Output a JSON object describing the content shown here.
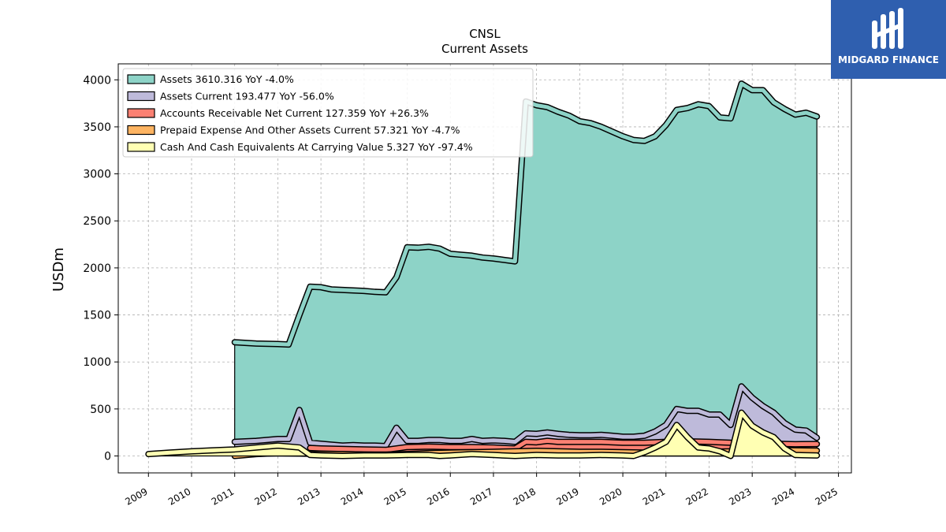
{
  "brand": {
    "name": "MIDGARD FINANCE"
  },
  "chart_data": {
    "type": "line",
    "title": "CNSL",
    "subtitle": "Current  Assets",
    "ylabel": "USDm",
    "xlabel": "",
    "xlim": [
      2008.3,
      2025.3
    ],
    "ylim": [
      -180,
      4170
    ],
    "x_ticks": [
      "2009",
      "2010",
      "2011",
      "2012",
      "2013",
      "2014",
      "2015",
      "2016",
      "2017",
      "2018",
      "2019",
      "2020",
      "2021",
      "2022",
      "2023",
      "2024",
      "2025"
    ],
    "y_ticks": [
      "0",
      "500",
      "1000",
      "1500",
      "2000",
      "2500",
      "3000",
      "3500",
      "4000"
    ],
    "grid": true,
    "legend_position": "upper-left",
    "series": [
      {
        "name": "Assets",
        "legend": "Assets  3610.316 YoY -4.0%",
        "color": "#8dd3c7",
        "points": [
          [
            2011.0,
            1210
          ],
          [
            2011.5,
            1195
          ],
          [
            2012.0,
            1190
          ],
          [
            2012.25,
            1185
          ],
          [
            2012.5,
            1500
          ],
          [
            2012.75,
            1800
          ],
          [
            2013.0,
            1795
          ],
          [
            2013.25,
            1770
          ],
          [
            2013.5,
            1765
          ],
          [
            2013.75,
            1760
          ],
          [
            2014.0,
            1755
          ],
          [
            2014.25,
            1745
          ],
          [
            2014.5,
            1740
          ],
          [
            2014.75,
            1900
          ],
          [
            2015.0,
            2220
          ],
          [
            2015.25,
            2215
          ],
          [
            2015.5,
            2225
          ],
          [
            2015.75,
            2205
          ],
          [
            2016.0,
            2150
          ],
          [
            2016.25,
            2140
          ],
          [
            2016.5,
            2130
          ],
          [
            2016.75,
            2110
          ],
          [
            2017.0,
            2100
          ],
          [
            2017.25,
            2085
          ],
          [
            2017.5,
            2070
          ],
          [
            2017.75,
            3770
          ],
          [
            2018.0,
            3730
          ],
          [
            2018.25,
            3710
          ],
          [
            2018.5,
            3660
          ],
          [
            2018.75,
            3620
          ],
          [
            2019.0,
            3560
          ],
          [
            2019.25,
            3540
          ],
          [
            2019.5,
            3500
          ],
          [
            2019.75,
            3450
          ],
          [
            2020.0,
            3400
          ],
          [
            2020.25,
            3360
          ],
          [
            2020.5,
            3350
          ],
          [
            2020.75,
            3400
          ],
          [
            2021.0,
            3520
          ],
          [
            2021.25,
            3680
          ],
          [
            2021.5,
            3700
          ],
          [
            2021.75,
            3740
          ],
          [
            2022.0,
            3720
          ],
          [
            2022.25,
            3600
          ],
          [
            2022.5,
            3590
          ],
          [
            2022.75,
            3960
          ],
          [
            2023.0,
            3890
          ],
          [
            2023.25,
            3890
          ],
          [
            2023.5,
            3760
          ],
          [
            2023.75,
            3690
          ],
          [
            2024.0,
            3630
          ],
          [
            2024.25,
            3650
          ],
          [
            2024.5,
            3610
          ]
        ]
      },
      {
        "name": "Assets Current",
        "legend": "Assets Current  193.477 YoY -56.0%",
        "color": "#bebada",
        "points": [
          [
            2011.0,
            150
          ],
          [
            2011.5,
            160
          ],
          [
            2012.0,
            180
          ],
          [
            2012.25,
            180
          ],
          [
            2012.5,
            490
          ],
          [
            2012.75,
            140
          ],
          [
            2013.0,
            130
          ],
          [
            2013.25,
            120
          ],
          [
            2013.5,
            110
          ],
          [
            2013.75,
            115
          ],
          [
            2014.0,
            110
          ],
          [
            2014.25,
            110
          ],
          [
            2014.5,
            105
          ],
          [
            2014.75,
            300
          ],
          [
            2015.0,
            160
          ],
          [
            2015.25,
            160
          ],
          [
            2015.5,
            170
          ],
          [
            2015.75,
            170
          ],
          [
            2016.0,
            160
          ],
          [
            2016.25,
            160
          ],
          [
            2016.5,
            180
          ],
          [
            2016.75,
            160
          ],
          [
            2017.0,
            165
          ],
          [
            2017.25,
            160
          ],
          [
            2017.5,
            150
          ],
          [
            2017.75,
            240
          ],
          [
            2018.0,
            235
          ],
          [
            2018.25,
            250
          ],
          [
            2018.5,
            235
          ],
          [
            2018.75,
            225
          ],
          [
            2019.0,
            220
          ],
          [
            2019.25,
            220
          ],
          [
            2019.5,
            225
          ],
          [
            2019.75,
            215
          ],
          [
            2020.0,
            205
          ],
          [
            2020.25,
            205
          ],
          [
            2020.5,
            215
          ],
          [
            2020.75,
            260
          ],
          [
            2021.0,
            330
          ],
          [
            2021.25,
            500
          ],
          [
            2021.5,
            480
          ],
          [
            2021.75,
            480
          ],
          [
            2022.0,
            440
          ],
          [
            2022.25,
            440
          ],
          [
            2022.5,
            330
          ],
          [
            2022.75,
            740
          ],
          [
            2023.0,
            620
          ],
          [
            2023.25,
            530
          ],
          [
            2023.5,
            460
          ],
          [
            2023.75,
            350
          ],
          [
            2024.0,
            280
          ],
          [
            2024.25,
            270
          ],
          [
            2024.5,
            193
          ]
        ]
      },
      {
        "name": "Accounts Receivable Net Current",
        "legend": "Accounts Receivable Net Current  127.359 YoY +26.3%",
        "color": "#fb8072",
        "points": [
          [
            2012.75,
            85
          ],
          [
            2013.0,
            80
          ],
          [
            2013.5,
            75
          ],
          [
            2014.0,
            70
          ],
          [
            2014.5,
            65
          ],
          [
            2015.0,
            95
          ],
          [
            2015.5,
            100
          ],
          [
            2016.0,
            95
          ],
          [
            2016.5,
            95
          ],
          [
            2017.0,
            90
          ],
          [
            2017.5,
            80
          ],
          [
            2017.75,
            150
          ],
          [
            2018.0,
            145
          ],
          [
            2018.25,
            160
          ],
          [
            2018.5,
            150
          ],
          [
            2019.0,
            150
          ],
          [
            2019.5,
            150
          ],
          [
            2020.0,
            140
          ],
          [
            2020.5,
            140
          ],
          [
            2021.0,
            150
          ],
          [
            2021.5,
            155
          ],
          [
            2022.0,
            150
          ],
          [
            2022.5,
            140
          ],
          [
            2023.0,
            140
          ],
          [
            2023.5,
            130
          ],
          [
            2024.0,
            125
          ],
          [
            2024.5,
            127
          ]
        ]
      },
      {
        "name": "Prepaid Expense And Other Assets Current",
        "legend": "Prepaid Expense And Other Assets Current  57.321 YoY -4.7%",
        "color": "#fdb462",
        "points": [
          [
            2011.0,
            0
          ],
          [
            2011.5,
            20
          ],
          [
            2012.0,
            30
          ],
          [
            2012.5,
            25
          ],
          [
            2013.0,
            20
          ],
          [
            2013.5,
            20
          ],
          [
            2014.0,
            15
          ],
          [
            2014.5,
            15
          ],
          [
            2015.0,
            20
          ],
          [
            2015.5,
            30
          ],
          [
            2016.0,
            35
          ],
          [
            2016.5,
            40
          ],
          [
            2017.0,
            45
          ],
          [
            2017.5,
            50
          ],
          [
            2018.0,
            55
          ],
          [
            2018.5,
            50
          ],
          [
            2019.0,
            45
          ],
          [
            2019.5,
            45
          ],
          [
            2020.0,
            40
          ],
          [
            2020.5,
            35
          ],
          [
            2021.0,
            30
          ],
          [
            2021.5,
            40
          ],
          [
            2022.0,
            45
          ],
          [
            2022.5,
            50
          ],
          [
            2023.0,
            60
          ],
          [
            2023.5,
            65
          ],
          [
            2024.0,
            60
          ],
          [
            2024.5,
            57
          ]
        ]
      },
      {
        "name": "Cash And Cash Equivalents At Carrying Value",
        "legend": "Cash And Cash Equivalents At Carrying Value  5.327 YoY -97.4%",
        "color": "#ffffb3",
        "points": [
          [
            2009.0,
            20
          ],
          [
            2009.5,
            35
          ],
          [
            2010.0,
            50
          ],
          [
            2010.5,
            60
          ],
          [
            2011.0,
            70
          ],
          [
            2011.5,
            90
          ],
          [
            2012.0,
            110
          ],
          [
            2012.5,
            90
          ],
          [
            2012.75,
            10
          ],
          [
            2013.0,
            5
          ],
          [
            2013.5,
            0
          ],
          [
            2014.0,
            5
          ],
          [
            2014.5,
            5
          ],
          [
            2015.0,
            10
          ],
          [
            2015.5,
            10
          ],
          [
            2015.75,
            0
          ],
          [
            2016.0,
            5
          ],
          [
            2016.5,
            20
          ],
          [
            2017.0,
            10
          ],
          [
            2017.5,
            0
          ],
          [
            2018.0,
            10
          ],
          [
            2018.5,
            5
          ],
          [
            2019.0,
            5
          ],
          [
            2019.5,
            10
          ],
          [
            2020.0,
            5
          ],
          [
            2020.25,
            0
          ],
          [
            2020.5,
            40
          ],
          [
            2020.75,
            90
          ],
          [
            2021.0,
            150
          ],
          [
            2021.25,
            330
          ],
          [
            2021.5,
            200
          ],
          [
            2021.75,
            90
          ],
          [
            2022.0,
            80
          ],
          [
            2022.25,
            50
          ],
          [
            2022.5,
            0
          ],
          [
            2022.75,
            460
          ],
          [
            2023.0,
            320
          ],
          [
            2023.25,
            250
          ],
          [
            2023.5,
            200
          ],
          [
            2023.75,
            80
          ],
          [
            2024.0,
            10
          ],
          [
            2024.5,
            5
          ]
        ]
      }
    ]
  }
}
